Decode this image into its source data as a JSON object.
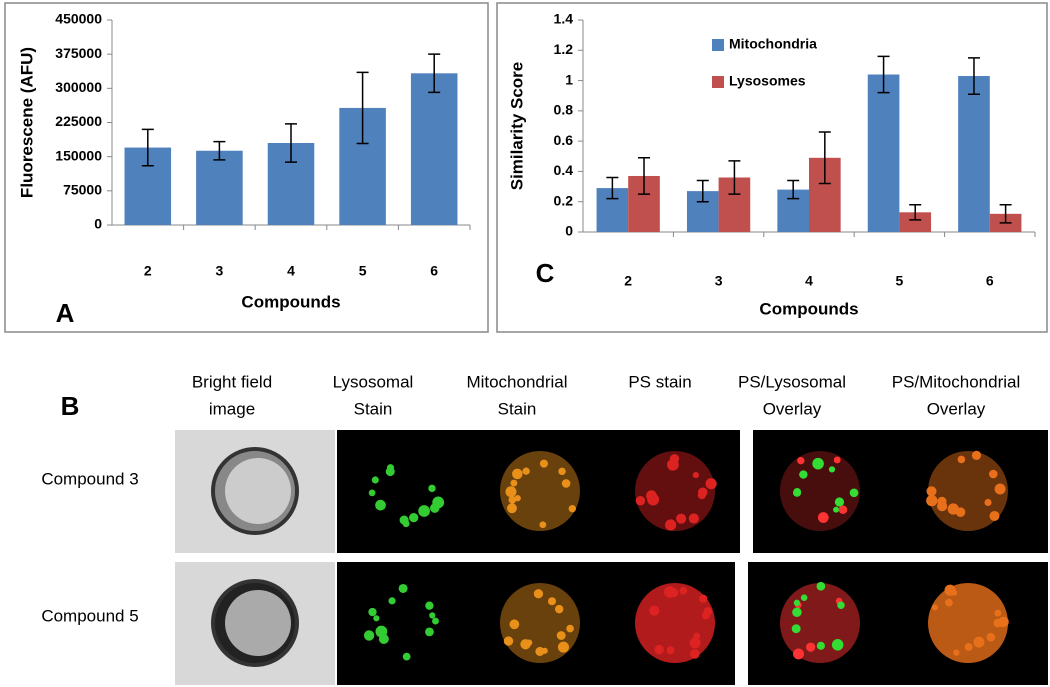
{
  "chart_data": [
    {
      "type": "bar",
      "panel": "A",
      "y_label": "Fluorescene (AFU)",
      "x_label": "Compounds",
      "categories": [
        "2",
        "3",
        "4",
        "5",
        "6"
      ],
      "values": [
        170000,
        163000,
        180000,
        257000,
        333000
      ],
      "errors": [
        40000,
        20000,
        42000,
        78000,
        42000
      ],
      "color": "#4f81bd",
      "ylim": [
        0,
        450000
      ],
      "yticks": [
        0,
        75000,
        150000,
        225000,
        300000,
        375000,
        450000
      ]
    },
    {
      "type": "bar",
      "panel": "C",
      "y_label": "Similarity Score",
      "x_label": "Compounds",
      "categories": [
        "2",
        "3",
        "4",
        "5",
        "6"
      ],
      "series": [
        {
          "name": "Mitochondria",
          "color": "#4f81bd",
          "values": [
            0.29,
            0.27,
            0.28,
            1.04,
            1.03
          ],
          "errors": [
            0.07,
            0.07,
            0.06,
            0.12,
            0.12
          ]
        },
        {
          "name": "Lysosomes",
          "color": "#c0504d",
          "values": [
            0.37,
            0.36,
            0.49,
            0.13,
            0.12
          ],
          "errors": [
            0.12,
            0.11,
            0.17,
            0.05,
            0.06
          ]
        }
      ],
      "ylim": [
        0,
        1.4
      ],
      "yticks": [
        0,
        0.2,
        0.4,
        0.6,
        0.8,
        1,
        1.2,
        1.4
      ]
    }
  ],
  "panel_b": {
    "label": "B",
    "columns": [
      [
        "Bright field",
        "image"
      ],
      [
        "Lysosomal",
        "Stain"
      ],
      [
        "Mitochondrial",
        "Stain"
      ],
      [
        "PS stain"
      ],
      [
        "PS/Lysosomal",
        "Overlay"
      ],
      [
        "PS/Mitochondrial",
        "Overlay"
      ]
    ],
    "rows": [
      "Compound 3",
      "Compound 5"
    ]
  }
}
